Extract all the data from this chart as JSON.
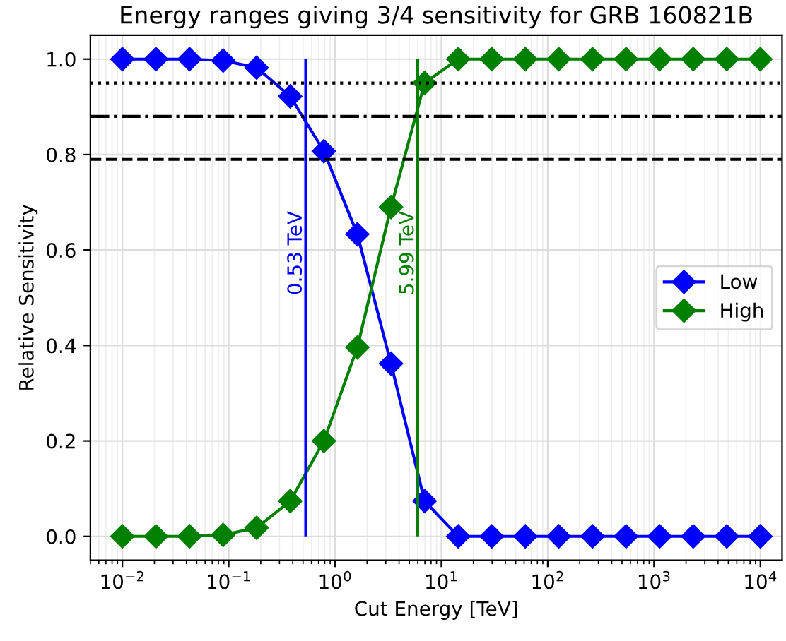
{
  "chart_data": {
    "type": "line",
    "title": "Energy ranges giving 3/4 sensitivity for GRB 160821B",
    "xlabel": "Cut Energy [TeV]",
    "ylabel": "Relative Sensitivity",
    "x": [
      0.01,
      0.0207,
      0.0428,
      0.0886,
      0.183,
      0.379,
      0.785,
      1.62,
      3.36,
      6.95,
      14.4,
      29.8,
      61.6,
      127,
      264,
      546,
      1129,
      2336,
      4833,
      10000
    ],
    "series": [
      {
        "name": "Low",
        "color": "#0000ff",
        "values": [
          1.0,
          1.0,
          1.0,
          0.997,
          0.982,
          0.922,
          0.807,
          0.633,
          0.362,
          0.074,
          0,
          0,
          0,
          0,
          0,
          0,
          0,
          0,
          0,
          0
        ]
      },
      {
        "name": "High",
        "color": "#008000",
        "values": [
          0,
          0,
          0,
          0.003,
          0.018,
          0.074,
          0.2,
          0.396,
          0.69,
          0.95,
          1.0,
          1.0,
          1.0,
          1.0,
          1.0,
          1.0,
          1.0,
          1.0,
          1.0,
          1.0
        ]
      }
    ],
    "log": "x",
    "marker": "diamond",
    "line_style": "solid",
    "grid": true,
    "legend": "right",
    "xlim": [
      0.005,
      16000
    ],
    "xticks": [
      {
        "value": 0.01,
        "label": "10$^{−2}$"
      },
      {
        "value": 0.1,
        "label": "10$^{−1}$"
      },
      {
        "value": 1,
        "label": "10$^{0}$"
      },
      {
        "value": 10,
        "label": "10$^{1}$"
      },
      {
        "value": 100,
        "label": "10$^{2}$"
      },
      {
        "value": 1000,
        "label": "10$^{3}$"
      },
      {
        "value": 10000,
        "label": "10$^{4}$"
      }
    ],
    "ylim": [
      -0.05,
      1.05
    ],
    "yticks": [
      {
        "value": 0,
        "label": "0.0"
      },
      {
        "value": 0.2,
        "label": "0.2"
      },
      {
        "value": 0.4,
        "label": "0.4"
      },
      {
        "value": 0.6,
        "label": "0.6"
      },
      {
        "value": 0.8,
        "label": "0.8"
      },
      {
        "value": 1,
        "label": "1.0"
      }
    ],
    "ref_lines": [
      {
        "axis": "y",
        "value": 0.95,
        "color": "#000000",
        "line_style": "dotted"
      },
      {
        "axis": "y",
        "value": 0.88,
        "color": "#000000",
        "line_style": "dashdot"
      },
      {
        "axis": "y",
        "value": 0.79,
        "color": "#000000",
        "line_style": "dashed"
      },
      {
        "axis": "x",
        "value": 0.53,
        "label": "0.53 TeV",
        "color": "#0000ff",
        "line_style": "solid"
      },
      {
        "axis": "x",
        "value": 5.99,
        "label": "5.99 TeV",
        "color": "#008000",
        "line_style": "solid"
      }
    ]
  }
}
